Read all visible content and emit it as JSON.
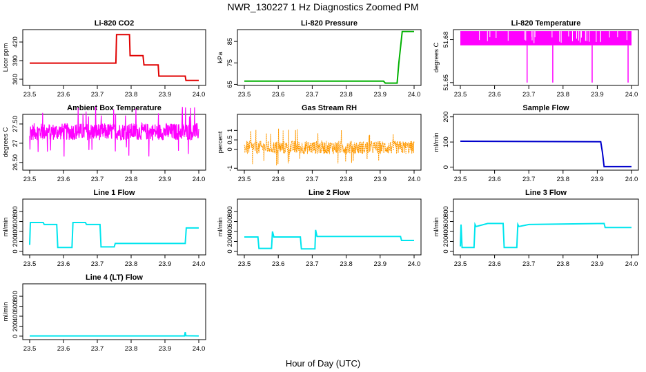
{
  "title": "NWR_130227  1 Hz Diagnostics Zoomed PM",
  "xlabel": "Hour of Day (UTC)",
  "chart_data": [
    {
      "type": "line",
      "title": "Li-820 CO2",
      "ylabel": "Licor ppm",
      "color": "#e00000",
      "xlim": [
        23.5,
        24.0
      ],
      "ylim": [
        350,
        440
      ],
      "xticks": [
        "23.5",
        "23.6",
        "23.7",
        "23.8",
        "23.9",
        "24.0"
      ],
      "yticks": [
        360,
        390,
        420
      ],
      "series": [
        {
          "x": [
            23.5,
            23.755,
            23.757,
            23.795,
            23.797,
            23.835,
            23.838,
            23.88,
            23.882,
            23.96,
            23.962,
            24.0
          ],
          "y": [
            386,
            386,
            432,
            432,
            398,
            398,
            383,
            383,
            365,
            365,
            358,
            358
          ]
        }
      ]
    },
    {
      "type": "line",
      "title": "Li-820 Pressure",
      "ylabel": "kPa",
      "color": "#00b000",
      "xlim": [
        23.5,
        24.0
      ],
      "ylim": [
        64.5,
        90.5
      ],
      "xticks": [
        "23.5",
        "23.6",
        "23.7",
        "23.8",
        "23.9",
        "24.0"
      ],
      "yticks": [
        65,
        75,
        85
      ],
      "series": [
        {
          "x": [
            23.5,
            23.91,
            23.915,
            23.95,
            23.955,
            23.965,
            23.97,
            24.0
          ],
          "y": [
            66.5,
            66.5,
            65.6,
            65.6,
            75,
            89.6,
            89.6,
            89.6
          ]
        }
      ]
    },
    {
      "type": "line",
      "title": "Li-820 Temperature",
      "ylabel": "degrees C",
      "color": "#ff00ff",
      "xlim": [
        23.5,
        24.0
      ],
      "ylim": [
        51.648,
        51.687
      ],
      "xticks": [
        "23.5",
        "23.6",
        "23.7",
        "23.8",
        "23.9",
        "24.0"
      ],
      "yticks": [
        51.65,
        51.68
      ],
      "band": [
        51.676,
        51.686
      ],
      "spikes": [
        23.695,
        23.77,
        23.885,
        23.99
      ],
      "spike_low": 51.65,
      "series": []
    },
    {
      "type": "line",
      "title": "Ambient Box Temperature",
      "ylabel": "degrees C",
      "color": "#ff00ff",
      "xlim": [
        23.5,
        24.0
      ],
      "ylim": [
        26.3,
        27.75
      ],
      "xticks": [
        "23.5",
        "23.6",
        "23.7",
        "23.8",
        "23.9",
        "24.0"
      ],
      "yticks": [
        26.5,
        27.0,
        27.5
      ],
      "noise": {
        "center": 27.3,
        "amp": 0.22,
        "spike": 0.65
      },
      "series": []
    },
    {
      "type": "line",
      "title": "Gas Stream RH",
      "ylabel": "percent",
      "color": "#ff9900",
      "xlim": [
        23.5,
        24.0
      ],
      "ylim": [
        -1.1,
        1.85
      ],
      "xticks": [
        "23.5",
        "23.6",
        "23.7",
        "23.8",
        "23.9",
        "24.0"
      ],
      "yticks": [
        -1.0,
        0.0,
        0.5,
        1.0
      ],
      "noise": {
        "center": 0.1,
        "amp": 0.35,
        "spike": 1.0
      },
      "series": []
    },
    {
      "type": "line",
      "title": "Sample Flow",
      "ylabel": "ml/min",
      "color": "#0000cc",
      "xlim": [
        23.5,
        24.0
      ],
      "ylim": [
        -12,
        210
      ],
      "xticks": [
        "23.5",
        "23.6",
        "23.7",
        "23.8",
        "23.9",
        "24.0"
      ],
      "yticks": [
        0,
        100,
        200
      ],
      "series": [
        {
          "x": [
            23.5,
            23.91,
            23.915,
            23.92,
            24.0
          ],
          "y": [
            103,
            101,
            60,
            2,
            2
          ]
        }
      ]
    },
    {
      "type": "line",
      "title": "Line 1 Flow",
      "ylabel": "ml/min",
      "color": "#00e5ee",
      "xlim": [
        23.5,
        24.0
      ],
      "ylim": [
        -70,
        1050
      ],
      "xticks": [
        "23.5",
        "23.6",
        "23.7",
        "23.8",
        "23.9",
        "24.0"
      ],
      "yticks": [
        0,
        200,
        400,
        600,
        800
      ],
      "series": [
        {
          "x": [
            23.5,
            23.502,
            23.54,
            23.543,
            23.58,
            23.583,
            23.625,
            23.628,
            23.665,
            23.668,
            23.708,
            23.711,
            23.75,
            23.753,
            23.96,
            23.963,
            24.0
          ],
          "y": [
            130,
            580,
            580,
            540,
            540,
            80,
            80,
            580,
            580,
            540,
            540,
            90,
            90,
            160,
            160,
            470,
            470
          ]
        }
      ]
    },
    {
      "type": "line",
      "title": "Line 2 Flow",
      "ylabel": "ml/min",
      "color": "#00e5ee",
      "xlim": [
        23.5,
        24.0
      ],
      "ylim": [
        -70,
        1050
      ],
      "xticks": [
        "23.5",
        "23.6",
        "23.7",
        "23.8",
        "23.9",
        "24.0"
      ],
      "yticks": [
        0,
        200,
        400,
        600,
        800
      ],
      "series": [
        {
          "x": [
            23.5,
            23.54,
            23.543,
            23.58,
            23.583,
            23.587,
            23.665,
            23.668,
            23.708,
            23.71,
            23.714,
            23.96,
            23.963,
            24.0
          ],
          "y": [
            290,
            290,
            60,
            60,
            400,
            290,
            290,
            50,
            50,
            430,
            300,
            300,
            220,
            220
          ]
        }
      ]
    },
    {
      "type": "line",
      "title": "Line 3 Flow",
      "ylabel": "ml/min",
      "color": "#00e5ee",
      "xlim": [
        23.5,
        24.0
      ],
      "ylim": [
        -70,
        1050
      ],
      "xticks": [
        "23.5",
        "23.6",
        "23.7",
        "23.8",
        "23.9",
        "24.0"
      ],
      "yticks": [
        0,
        200,
        400,
        600,
        800
      ],
      "series": [
        {
          "x": [
            23.5,
            23.502,
            23.505,
            23.54,
            23.543,
            23.546,
            23.58,
            23.625,
            23.628,
            23.665,
            23.668,
            23.671,
            23.7,
            23.92,
            23.923,
            24.0
          ],
          "y": [
            100,
            540,
            80,
            80,
            540,
            500,
            560,
            560,
            80,
            80,
            540,
            500,
            540,
            560,
            480,
            480
          ]
        }
      ]
    },
    {
      "type": "line",
      "title": "Line 4 (LT) Flow",
      "ylabel": "ml/min",
      "color": "#00e5ee",
      "xlim": [
        23.5,
        24.0
      ],
      "ylim": [
        -70,
        1050
      ],
      "xticks": [
        "23.5",
        "23.6",
        "23.7",
        "23.8",
        "23.9",
        "24.0"
      ],
      "yticks": [
        0,
        200,
        400,
        600,
        800
      ],
      "series": [
        {
          "x": [
            23.5,
            23.958,
            23.96,
            23.962,
            24.0
          ],
          "y": [
            5,
            5,
            80,
            8,
            5
          ]
        }
      ]
    }
  ]
}
